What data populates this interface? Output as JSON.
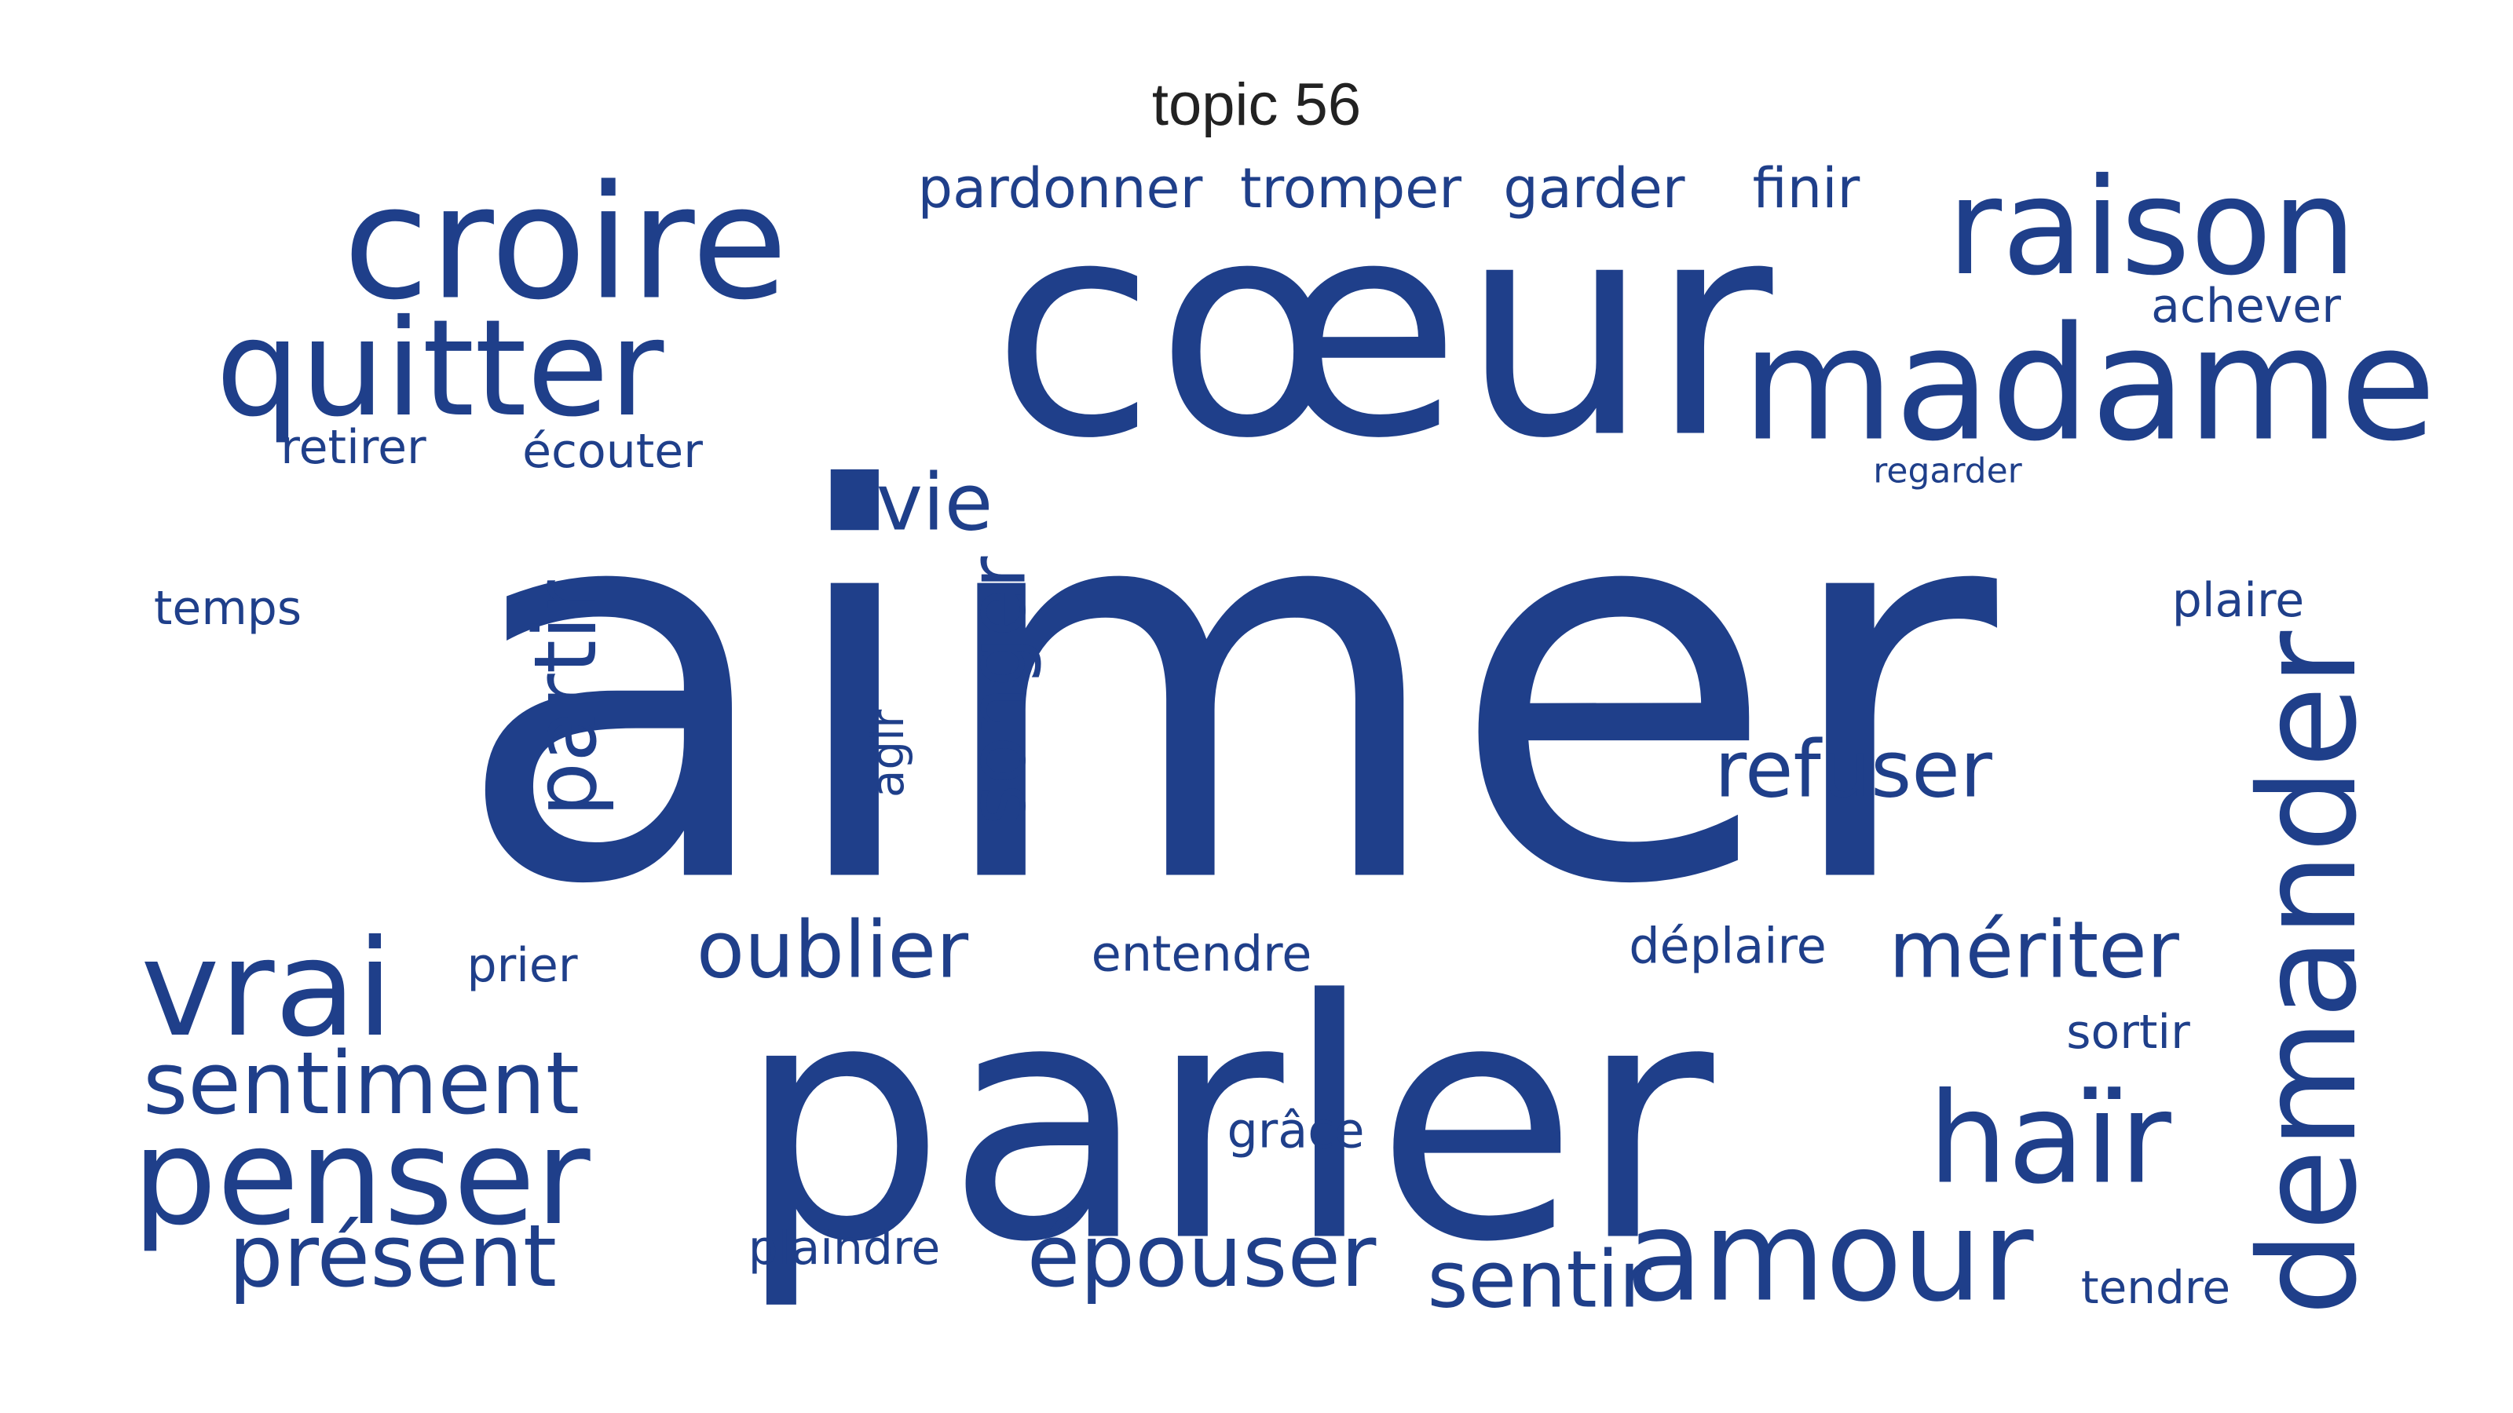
{
  "title": "topic 56",
  "color": "#1f3f8a",
  "words": [
    {
      "text": "aimer"
    },
    {
      "text": "parler"
    },
    {
      "text": "cœur"
    },
    {
      "text": "croire"
    },
    {
      "text": "raison"
    },
    {
      "text": "madame"
    },
    {
      "text": "quitter"
    },
    {
      "text": "vrai"
    },
    {
      "text": "penser"
    },
    {
      "text": "amour"
    },
    {
      "text": "haïr"
    },
    {
      "text": "demander"
    },
    {
      "text": "sentiment"
    },
    {
      "text": "présent"
    },
    {
      "text": "épouser"
    },
    {
      "text": "oublier"
    },
    {
      "text": "refuser"
    },
    {
      "text": "mériter"
    },
    {
      "text": "sentir"
    },
    {
      "text": "partir"
    },
    {
      "text": "songer"
    },
    {
      "text": "vie"
    },
    {
      "text": "pardonner"
    },
    {
      "text": "tromper"
    },
    {
      "text": "garder"
    },
    {
      "text": "finir"
    },
    {
      "text": "achever"
    },
    {
      "text": "retirer"
    },
    {
      "text": "écouter"
    },
    {
      "text": "regarder"
    },
    {
      "text": "temps"
    },
    {
      "text": "plaire"
    },
    {
      "text": "agir"
    },
    {
      "text": "prier"
    },
    {
      "text": "entendre"
    },
    {
      "text": "déplaire"
    },
    {
      "text": "sortir"
    },
    {
      "text": "grâce"
    },
    {
      "text": "plaindre"
    },
    {
      "text": "tendre"
    }
  ]
}
